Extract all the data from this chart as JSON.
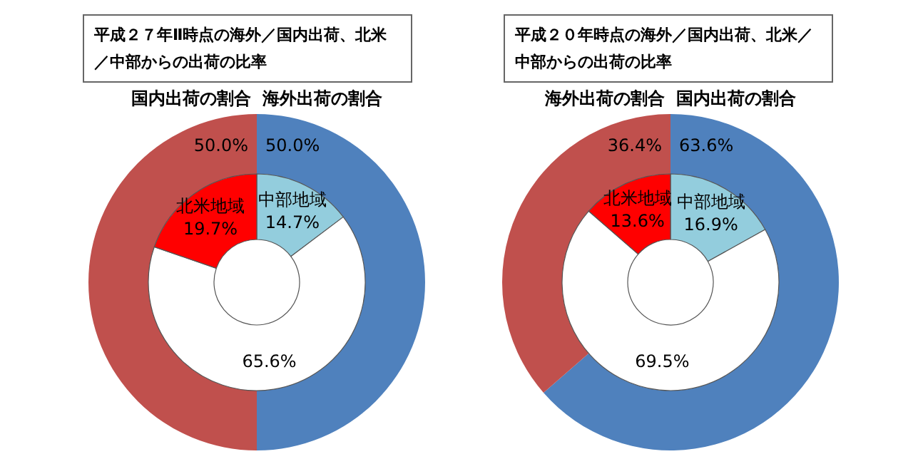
{
  "chart_data": [
    {
      "type": "donut",
      "title": "平成２７年Ⅱ時点の海外／国内出荷、北米／中部からの出荷の比率",
      "categories": [
        "海外出荷の割合",
        "国内出荷の割合"
      ],
      "values": [
        50.0,
        50.0
      ],
      "colors": [
        "#4f81bd",
        "#c0504d"
      ],
      "value_labels": [
        "50.0%",
        "50.0%"
      ]
    },
    {
      "type": "donut",
      "categories": [
        "中部地域",
        null,
        "北米地域"
      ],
      "values": [
        14.7,
        65.6,
        19.7
      ],
      "colors": [
        "#93cddd",
        "#ffffff",
        "#ff0000"
      ],
      "value_labels": [
        "14.7%",
        "65.6%",
        "19.7%"
      ]
    },
    {
      "type": "donut",
      "title": "平成２０年時点の海外／国内出荷、北米／中部からの出荷の比率",
      "categories": [
        "国内出荷の割合",
        "海外出荷の割合"
      ],
      "values": [
        63.6,
        36.4
      ],
      "colors": [
        "#4f81bd",
        "#c0504d"
      ],
      "value_labels": [
        "63.6%",
        "36.4%"
      ]
    },
    {
      "type": "donut",
      "categories": [
        "中部地域",
        null,
        "北米地域"
      ],
      "values": [
        16.9,
        69.5,
        13.6
      ],
      "colors": [
        "#93cddd",
        "#ffffff",
        "#ff0000"
      ],
      "value_labels": [
        "16.9%",
        "69.5%",
        "13.6%"
      ]
    }
  ]
}
